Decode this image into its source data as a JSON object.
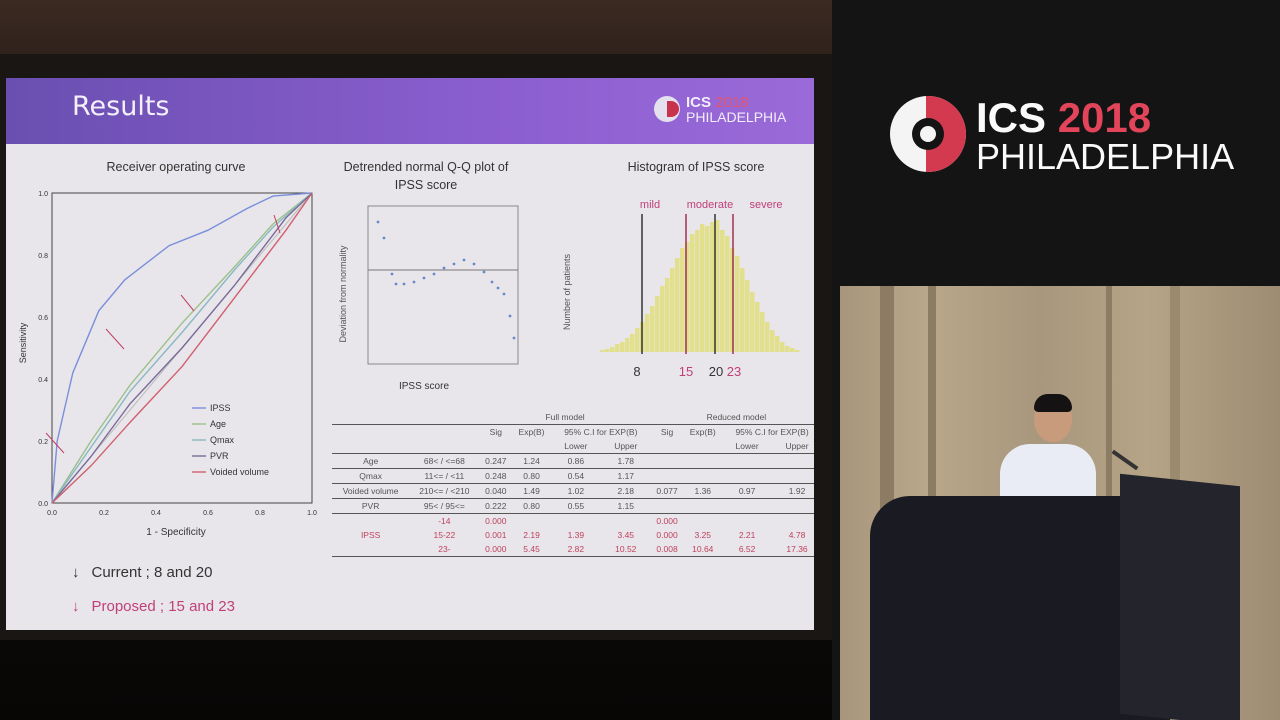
{
  "slide": {
    "title": "Results",
    "logo": {
      "ics": "ICS",
      "year": "2018",
      "city": "PHILADELPHIA"
    },
    "roc": {
      "title": "Receiver operating curve",
      "xlabel": "1 - Specificity",
      "ylabel": "Sensitivity",
      "xticks": [
        "0.0",
        "0.2",
        "0.4",
        "0.6",
        "0.8",
        "1.0"
      ],
      "yticks": [
        "0.0",
        "0.2",
        "0.4",
        "0.6",
        "0.8",
        "1.0"
      ],
      "legend": [
        "IPSS",
        "Age",
        "Qmax",
        "PVR",
        "Voided volume"
      ],
      "colors": {
        "IPSS": "#7a8fdc",
        "Age": "#9cc08a",
        "Qmax": "#8ab8c4",
        "PVR": "#7a6a9a",
        "Voided volume": "#d06070"
      }
    },
    "qq": {
      "title_line1": "Detrended normal Q-Q plot of",
      "title_line2": "IPSS score",
      "xlabel": "IPSS score",
      "ylabel": "Deviation from normality"
    },
    "hist": {
      "title": "Histogram of IPSS score",
      "ylabel": "Number of patients",
      "labels": [
        "mild",
        "moderate",
        "severe"
      ],
      "cutoffs": [
        "8",
        "15",
        "20",
        "23"
      ]
    },
    "notes": {
      "current": "Current ; 8 and 20",
      "proposed": "Proposed  ; 15 and 23"
    },
    "table": {
      "group_full": "Full model",
      "group_reduced": "Reduced model",
      "ci_header": "95% C.I for EXP(B)",
      "headers": [
        "Sig",
        "Exp(B)",
        "Lower",
        "Upper"
      ],
      "rows": [
        {
          "var": "Age",
          "cat": "68< / <=68",
          "full": [
            "0.247",
            "1.24",
            "0.86",
            "1.78"
          ],
          "reduced": [
            "",
            "",
            "",
            ""
          ]
        },
        {
          "var": "Qmax",
          "cat": "11<= / <11",
          "full": [
            "0.248",
            "0.80",
            "0.54",
            "1.17"
          ],
          "reduced": [
            "",
            "",
            "",
            ""
          ]
        },
        {
          "var": "Voided volume",
          "cat": "210<= / <210",
          "full": [
            "0.040",
            "1.49",
            "1.02",
            "2.18"
          ],
          "reduced": [
            "0.077",
            "1.36",
            "0.97",
            "1.92"
          ]
        },
        {
          "var": "PVR",
          "cat": "95< / 95<=",
          "full": [
            "0.222",
            "0.80",
            "0.55",
            "1.15"
          ],
          "reduced": [
            "",
            "",
            "",
            ""
          ]
        }
      ],
      "ipss": {
        "var": "IPSS",
        "rows": [
          {
            "cat": "-14",
            "full": [
              "0.000",
              "",
              "",
              ""
            ],
            "reduced": [
              "0.000",
              "",
              "",
              ""
            ]
          },
          {
            "cat": "15-22",
            "full": [
              "0.001",
              "2.19",
              "1.39",
              "3.45"
            ],
            "reduced": [
              "0.000",
              "3.25",
              "2.21",
              "4.78"
            ]
          },
          {
            "cat": "23-",
            "full": [
              "0.000",
              "5.45",
              "2.82",
              "10.52"
            ],
            "reduced": [
              "0.008",
              "10.64",
              "6.52",
              "17.36"
            ]
          }
        ]
      }
    }
  },
  "sidebar_logo": {
    "ics": "ICS",
    "year": "2018",
    "city": "PHILADELPHIA"
  },
  "podium_logo": {
    "text": "ICS PHILADELPHIA"
  }
}
